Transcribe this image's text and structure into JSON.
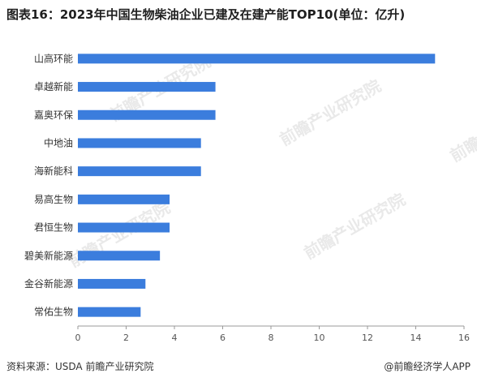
{
  "title": "图表16：2023年中国生物柴油企业已建及在建产能TOP10(单位：亿升)",
  "footer": {
    "source": "资料来源：USDA 前瞻产业研究院",
    "brand": "@前瞻经济学人APP"
  },
  "watermark": "前瞻产业研究院",
  "colors": {
    "bar": "#3b7ddd",
    "axis": "#999999"
  },
  "chart_data": {
    "type": "bar",
    "orientation": "horizontal",
    "title": "图表16：2023年中国生物柴油企业已建及在建产能TOP10(单位：亿升)",
    "categories": [
      "山高环能",
      "卓越新能",
      "嘉奥环保",
      "中地油",
      "海新能科",
      "易高生物",
      "君恒生物",
      "碧美新能源",
      "金谷新能源",
      "常佑生物"
    ],
    "values": [
      14.8,
      5.7,
      5.7,
      5.1,
      5.1,
      3.8,
      3.8,
      3.4,
      2.8,
      2.6
    ],
    "xlim": [
      0,
      16
    ],
    "xticks": [
      "0",
      "2",
      "4",
      "6",
      "8",
      "10",
      "12",
      "14",
      "16"
    ],
    "grid": false,
    "legend": "none"
  }
}
